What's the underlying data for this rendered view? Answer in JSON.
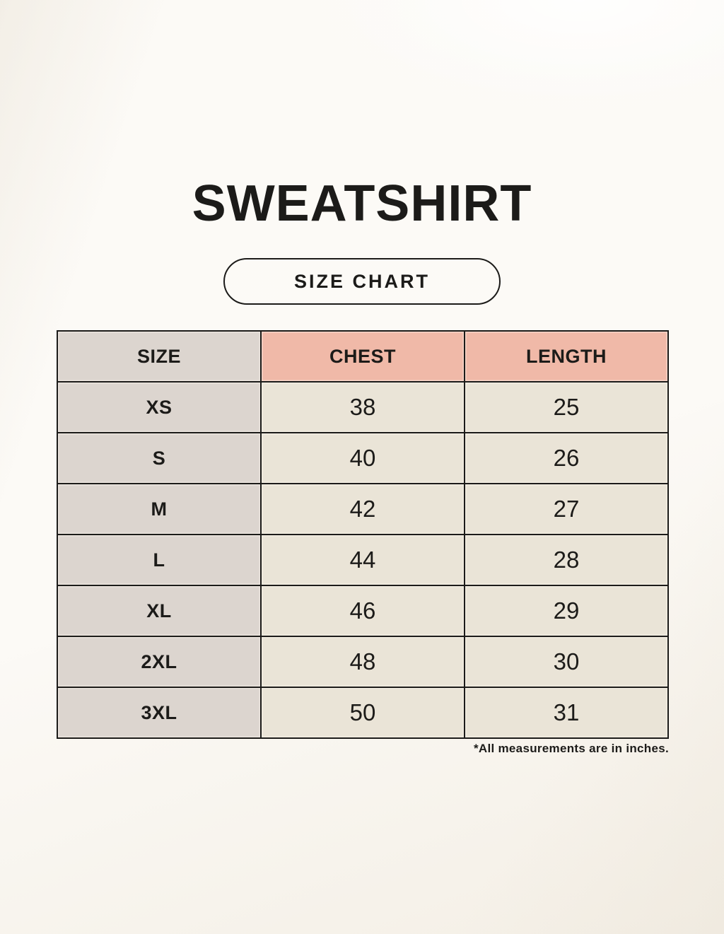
{
  "title": "SWEATSHIRT",
  "size_chart_badge": {
    "label": "SIZE CHART"
  },
  "table": {
    "columns": [
      "SIZE",
      "CHEST",
      "LENGTH"
    ],
    "rows": [
      {
        "size": "XS",
        "chest": "38",
        "length": "25"
      },
      {
        "size": "S",
        "chest": "40",
        "length": "26"
      },
      {
        "size": "M",
        "chest": "42",
        "length": "27"
      },
      {
        "size": "L",
        "chest": "44",
        "length": "28"
      },
      {
        "size": "XL",
        "chest": "46",
        "length": "29"
      },
      {
        "size": "2XL",
        "chest": "48",
        "length": "30"
      },
      {
        "size": "3XL",
        "chest": "50",
        "length": "31"
      }
    ]
  },
  "footnote": "*All measurements are in inches.",
  "colors": {
    "background": "#f8f4ec",
    "size_column_bg": "#dcd5cf",
    "accent_header_bg": "#f0b9a8",
    "value_cell_bg": "#eae4d7",
    "border": "#1c1b19",
    "text": "#1c1b19"
  },
  "chart_data": {
    "type": "table",
    "title": "SWEATSHIRT",
    "subtitle": "SIZE CHART",
    "columns": [
      "SIZE",
      "CHEST",
      "LENGTH"
    ],
    "rows": [
      [
        "XS",
        38,
        25
      ],
      [
        "S",
        40,
        26
      ],
      [
        "M",
        42,
        27
      ],
      [
        "L",
        44,
        28
      ],
      [
        "XL",
        46,
        29
      ],
      [
        "2XL",
        48,
        30
      ],
      [
        "3XL",
        50,
        31
      ]
    ],
    "units": "inches",
    "note": "*All measurements are in inches."
  }
}
